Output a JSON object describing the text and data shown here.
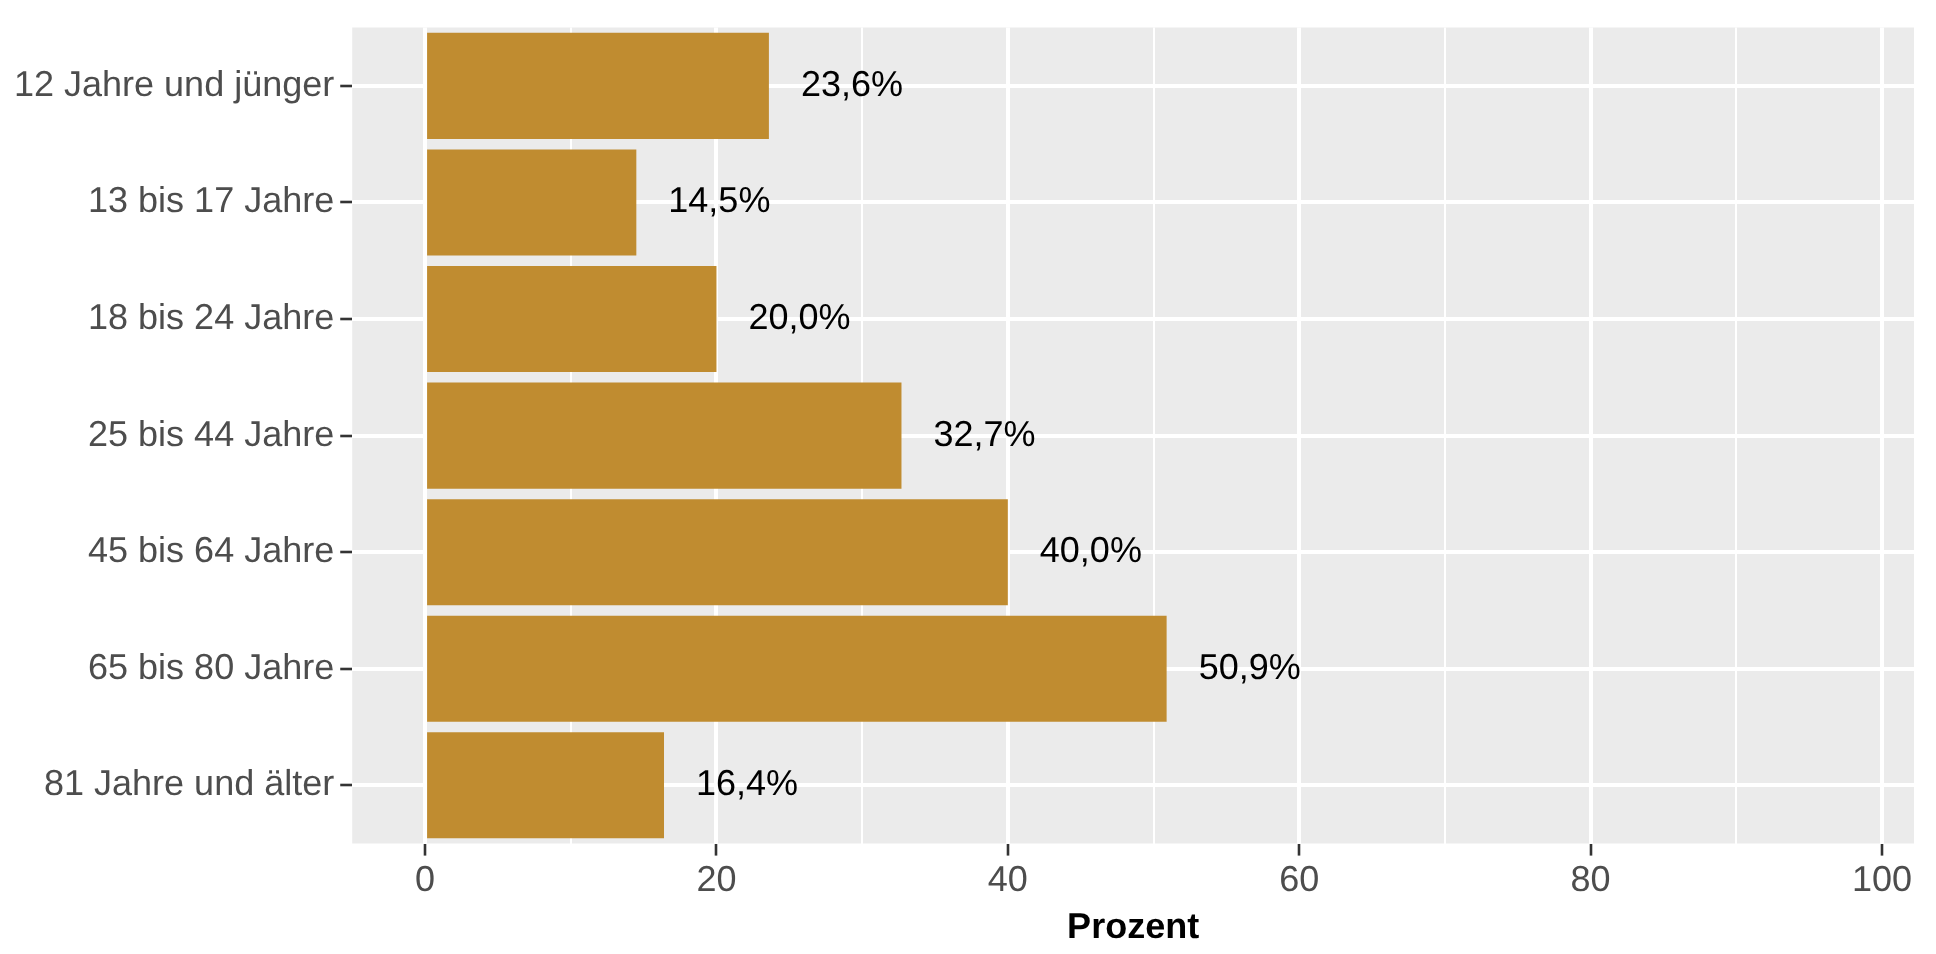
{
  "chart_data": {
    "type": "bar",
    "orientation": "horizontal",
    "xlabel": "Prozent",
    "categories": [
      "12 Jahre und jünger",
      "13 bis 17 Jahre",
      "18 bis 24 Jahre",
      "25 bis 44 Jahre",
      "45 bis 64 Jahre",
      "65 bis 80 Jahre",
      "81 Jahre und älter"
    ],
    "values": [
      23.6,
      14.5,
      20.0,
      32.7,
      40.0,
      50.9,
      16.4
    ],
    "value_labels": [
      "23,6%",
      "14,5%",
      "20,0%",
      "32,7%",
      "40,0%",
      "50,9%",
      "16,4%"
    ],
    "color": "#c08c30",
    "xlim": [
      -5,
      102.2
    ],
    "xticks": [
      0,
      {
        "value": 10,
        "label": null
      },
      20,
      {
        "value": 30,
        "label": null
      },
      40,
      {
        "value": 50,
        "label": null
      },
      60,
      {
        "value": 70,
        "label": null
      },
      80,
      {
        "value": 90,
        "label": null
      },
      100
    ],
    "grid": true,
    "legend": false
  }
}
